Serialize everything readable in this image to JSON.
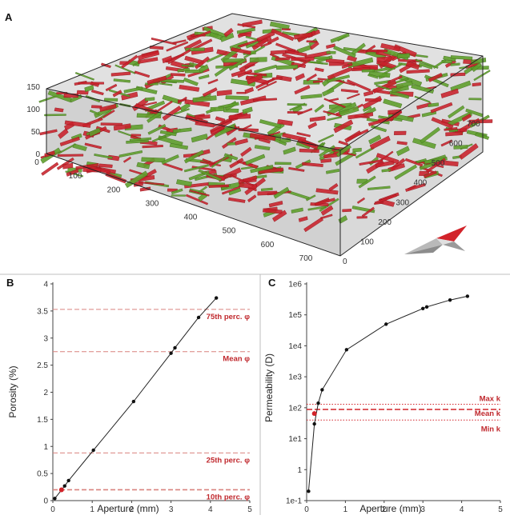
{
  "panels": {
    "a": {
      "label": "A",
      "z_ticks": [
        "150",
        "100",
        "50",
        "0"
      ],
      "x_ticks": [
        "0",
        "100",
        "200",
        "300",
        "400",
        "500",
        "600",
        "700"
      ],
      "y_ticks": [
        "0",
        "100",
        "200",
        "300",
        "400",
        "500",
        "600",
        "700"
      ],
      "colors": {
        "fracture_red": "#c8202a",
        "fracture_green": "#5f9e2c",
        "box": "#c9c9c9"
      }
    },
    "b": {
      "label": "B"
    },
    "c": {
      "label": "C"
    }
  },
  "chart_data": [
    {
      "type": "line",
      "panel": "B",
      "xlabel": "Aperture (mm)",
      "ylabel": "Porosity (%)",
      "xlim": [
        0,
        5
      ],
      "ylim": [
        0,
        4
      ],
      "x_ticks": [
        "0",
        "1",
        "2",
        "3",
        "4",
        "5"
      ],
      "y_ticks": [
        "0",
        "0.5",
        "1",
        "1.5",
        "2",
        "2.5",
        "3",
        "3.5",
        "4"
      ],
      "x": [
        0.05,
        0.3,
        0.4,
        1.03,
        2.05,
        3.0,
        3.1,
        3.7,
        4.15
      ],
      "y": [
        0.04,
        0.27,
        0.37,
        0.93,
        1.83,
        2.72,
        2.82,
        3.38,
        3.74
      ],
      "highlight_point": {
        "x": 0.22,
        "y": 0.2
      },
      "reference_lines": [
        {
          "label": "75th perc. φ",
          "value": 3.53,
          "emphasis": false
        },
        {
          "label": "Mean φ",
          "value": 2.75,
          "emphasis": false
        },
        {
          "label": "25th perc. φ",
          "value": 0.88,
          "emphasis": false
        },
        {
          "label": "10th perc. φ",
          "value": 0.2,
          "emphasis": true
        }
      ],
      "colors": {
        "line": "#222222",
        "reference": "#d9827f",
        "highlight": "#d2232a"
      }
    },
    {
      "type": "line",
      "panel": "C",
      "xlabel": "Aperture (mm)",
      "ylabel": "Permeability (D)",
      "xlim": [
        0,
        5
      ],
      "ylim": [
        0.1,
        1000000
      ],
      "yscale": "log",
      "x_ticks": [
        "0",
        "1",
        "2",
        "3",
        "4",
        "5"
      ],
      "y_ticks": [
        {
          "value": 0.1,
          "label": "1e-1"
        },
        {
          "value": 1,
          "label": "1"
        },
        {
          "value": 10,
          "label": "1e1"
        },
        {
          "value": 100,
          "label": "1e2"
        },
        {
          "value": 1000,
          "label": "1e3"
        },
        {
          "value": 10000,
          "label": "1e4"
        },
        {
          "value": 100000,
          "label": "1e5"
        },
        {
          "value": 1000000,
          "label": "1e6"
        }
      ],
      "x": [
        0.05,
        0.2,
        0.3,
        0.4,
        1.03,
        2.05,
        3.0,
        3.1,
        3.7,
        4.15
      ],
      "y": [
        0.2,
        30,
        140,
        380,
        7500,
        50000,
        160000,
        180000,
        300000,
        400000
      ],
      "highlight_point": {
        "x": 0.2,
        "y": 65
      },
      "reference_lines": [
        {
          "label": "Max k",
          "value": 130,
          "style": "dotted"
        },
        {
          "label": "Mean k",
          "value": 88,
          "style": "dashed"
        },
        {
          "label": "Min k",
          "value": 40,
          "style": "dotted"
        }
      ],
      "colors": {
        "line": "#222222",
        "reference": "#d2232a",
        "highlight": "#d2232a"
      }
    }
  ]
}
